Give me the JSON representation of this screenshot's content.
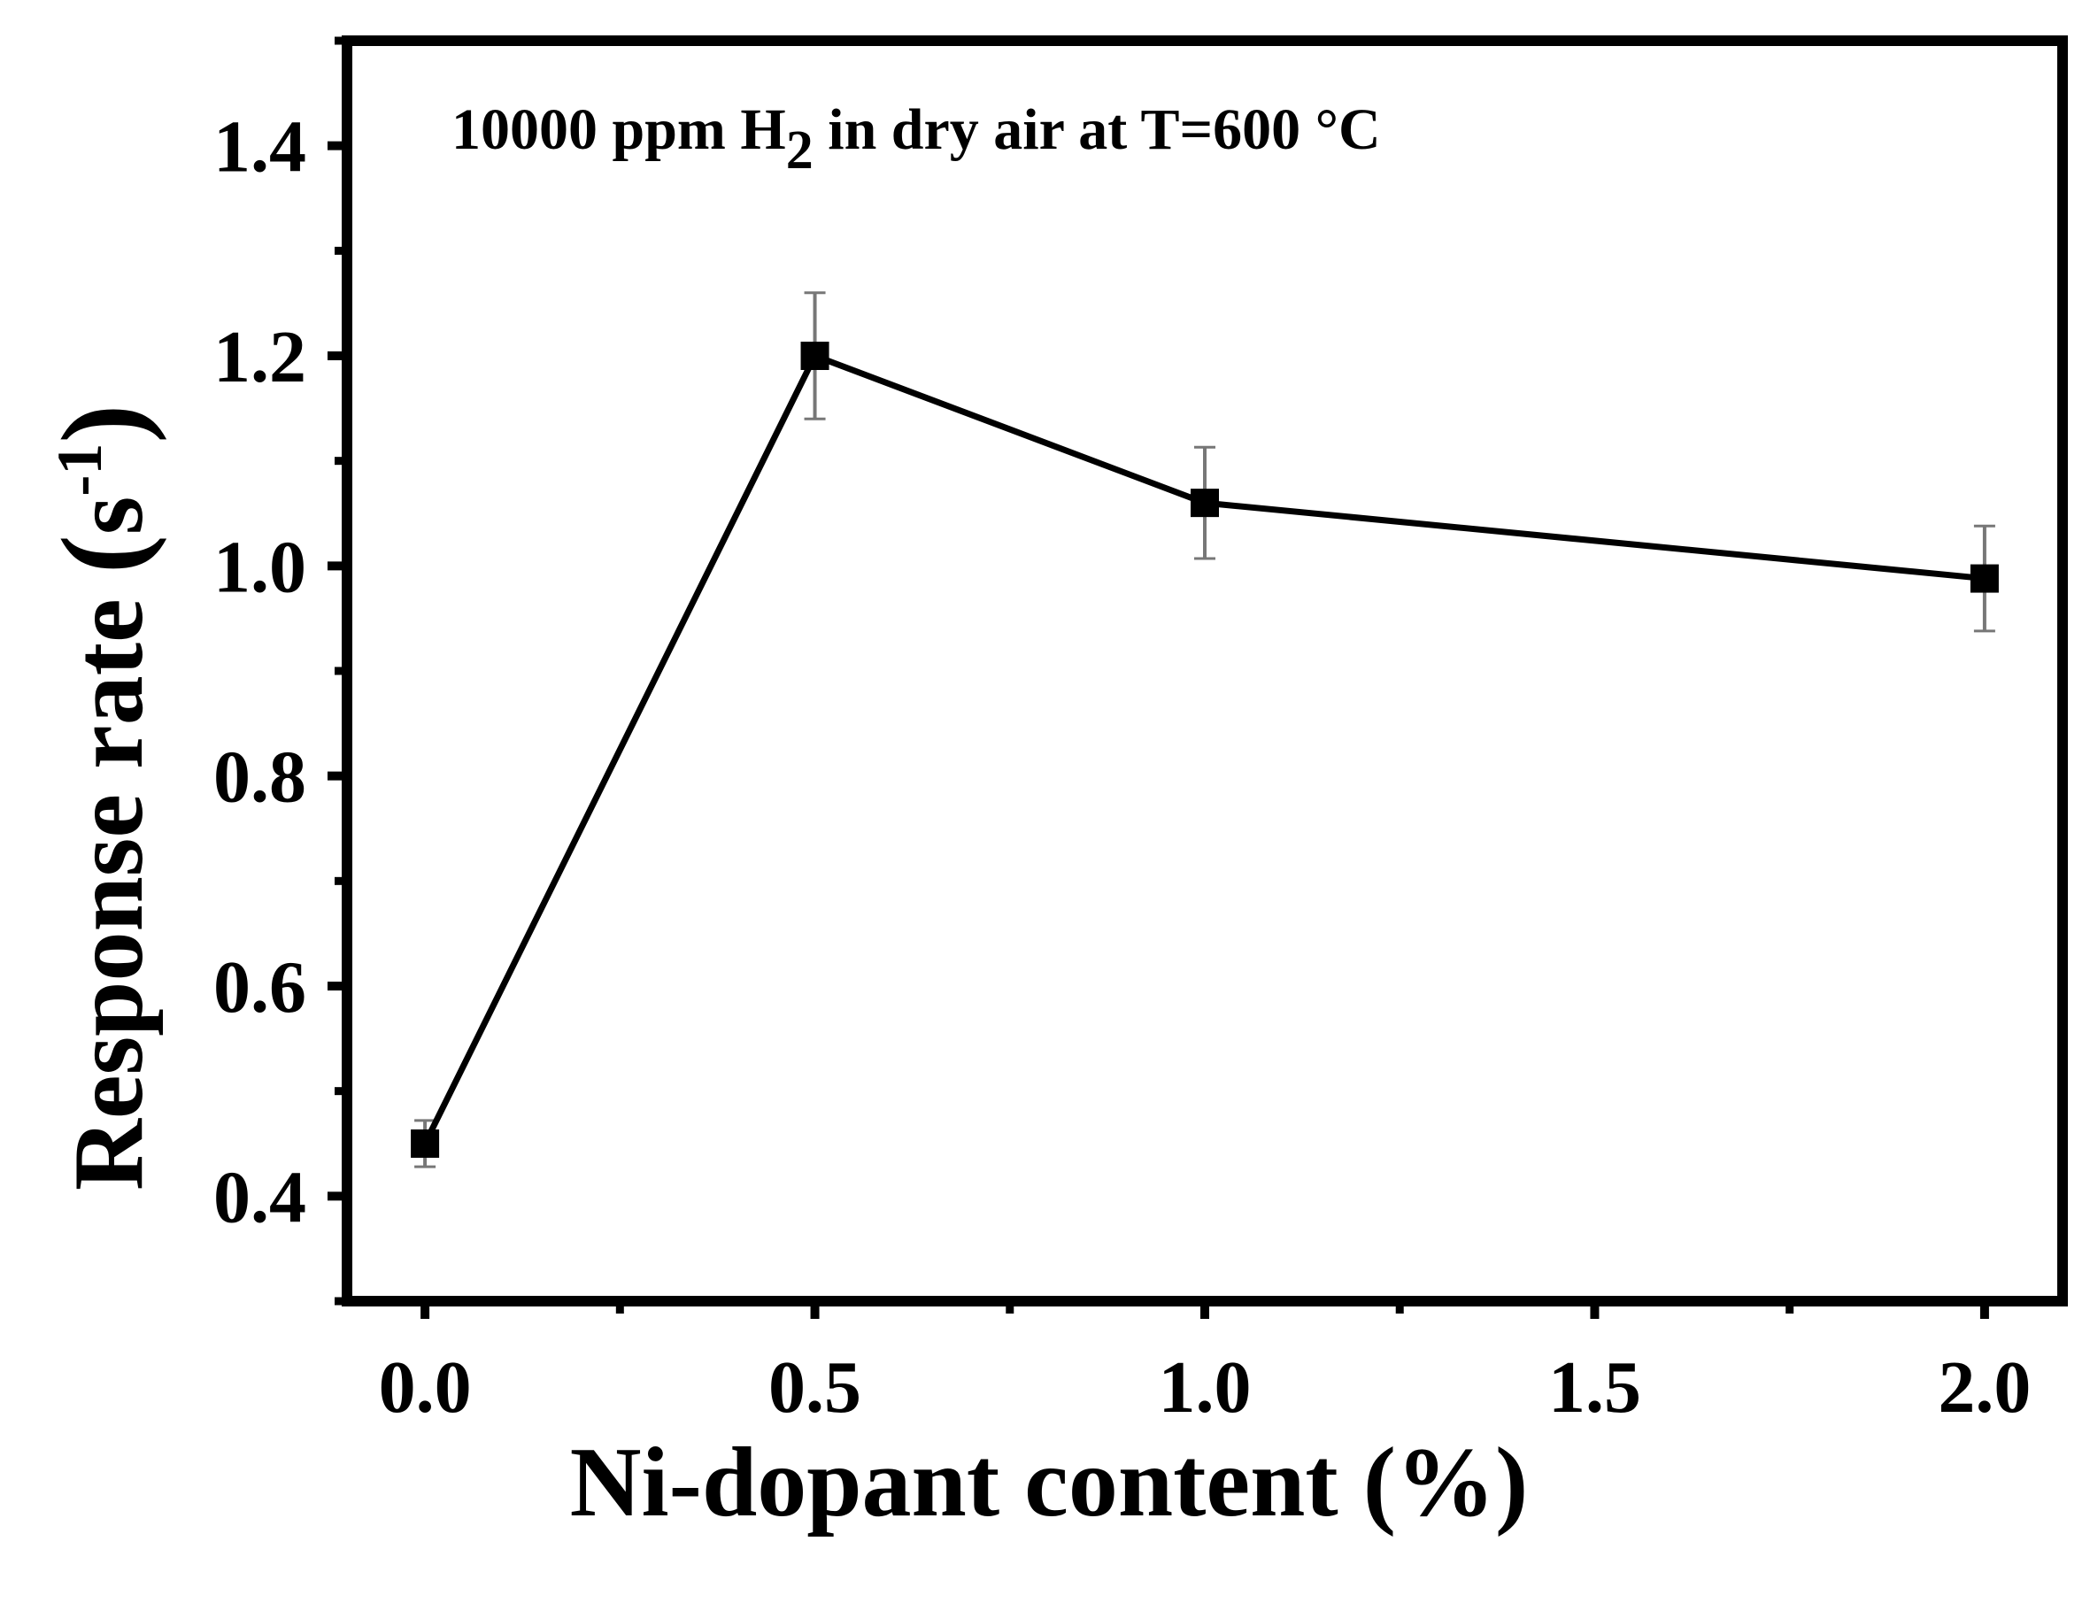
{
  "chart_data": {
    "type": "line",
    "title": "",
    "annotation": {
      "prefix": "10000 ppm H",
      "subscript": "2",
      "suffix": " in dry air at T=600 °C"
    },
    "xlabel": "Ni-dopant content (%)",
    "ylabel": {
      "main": "Response rate ",
      "open": "(",
      "unit": "s",
      "superscript": "-1",
      "close": ")"
    },
    "xlim": [
      -0.1,
      2.1
    ],
    "ylim": [
      0.3,
      1.5
    ],
    "xticks": [
      0.0,
      0.5,
      1.0,
      1.5,
      2.0
    ],
    "xtick_labels": [
      "0.0",
      "0.5",
      "1.0",
      "1.5",
      "2.0"
    ],
    "x_minor_ticks": [
      0.25,
      0.75,
      1.25,
      1.75
    ],
    "yticks": [
      0.4,
      0.6,
      0.8,
      1.0,
      1.2,
      1.4
    ],
    "ytick_labels": [
      "0.4",
      "0.6",
      "0.8",
      "1.0",
      "1.2",
      "1.4"
    ],
    "y_minor_ticks": [
      0.3,
      0.5,
      0.7,
      0.9,
      1.1,
      1.3,
      1.5
    ],
    "grid": false,
    "legend": "none",
    "series": [
      {
        "marker": "square",
        "color": "#000000",
        "x": [
          0.0,
          0.5,
          1.0,
          2.0
        ],
        "y": [
          0.45,
          1.2,
          1.06,
          0.988
        ],
        "error": [
          0.022,
          0.06,
          0.053,
          0.05
        ]
      }
    ]
  }
}
